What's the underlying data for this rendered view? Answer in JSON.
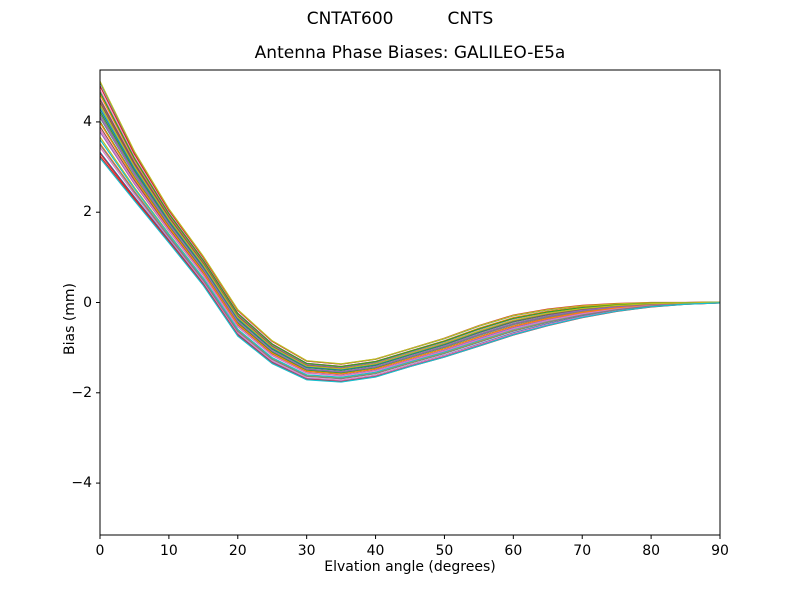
{
  "figure": {
    "suptitle": "CNTAT600          CNTS",
    "axes_title": "Antenna Phase Biases: GALILEO-E5a",
    "xlabel": "Elvation angle (degrees)",
    "ylabel": "Bias (mm)"
  },
  "chart_data": {
    "type": "line",
    "title": "Antenna Phase Biases: GALILEO-E5a",
    "suptitle": "CNTAT600          CNTS",
    "xlabel": "Elvation angle (degrees)",
    "ylabel": "Bias (mm)",
    "xlim": [
      0,
      90
    ],
    "ylim": [
      -5.15,
      5.15
    ],
    "xticks": [
      0,
      10,
      20,
      30,
      40,
      50,
      60,
      70,
      80,
      90
    ],
    "yticks": [
      -4,
      -2,
      0,
      2,
      4
    ],
    "grid": false,
    "legend": null,
    "series_note": "bundle of unlabeled per-satellite phase-bias curves (no legend shown)",
    "x": [
      0,
      5,
      10,
      15,
      20,
      25,
      30,
      35,
      40,
      45,
      50,
      55,
      60,
      65,
      70,
      75,
      80,
      85,
      90
    ],
    "mean": [
      4.05,
      2.8,
      1.7,
      0.7,
      -0.45,
      -1.1,
      -1.5,
      -1.56,
      -1.45,
      -1.22,
      -1.0,
      -0.74,
      -0.5,
      -0.33,
      -0.2,
      -0.11,
      -0.05,
      -0.02,
      0.0
    ],
    "half_spread": [
      0.85,
      0.55,
      0.38,
      0.33,
      0.3,
      0.26,
      0.22,
      0.21,
      0.21,
      0.21,
      0.22,
      0.24,
      0.23,
      0.19,
      0.14,
      0.09,
      0.05,
      0.02,
      0.01
    ],
    "n_series": 30,
    "series_fractions_start": [
      0.97,
      -0.62,
      0.21,
      -0.95,
      0.55,
      -0.18,
      0.78,
      0.05,
      -0.45,
      0.35,
      -0.85,
      0.65,
      -0.05,
      0.88,
      -0.32,
      0.45,
      -0.72,
      0.15,
      1.0,
      -0.52,
      0.28,
      -0.08,
      0.72,
      -0.88,
      0.08,
      0.52,
      -0.25,
      -0.65,
      0.38,
      -1.0
    ],
    "series_fractions_end": [
      0.85,
      -0.45,
      0.35,
      -0.8,
      0.62,
      -0.05,
      0.55,
      0.18,
      -0.6,
      0.42,
      -0.7,
      0.75,
      0.1,
      1.0,
      -0.2,
      0.3,
      -0.85,
      0.0,
      0.88,
      -0.35,
      0.45,
      -0.15,
      0.6,
      -1.0,
      0.22,
      0.38,
      -0.4,
      -0.55,
      0.5,
      -0.9
    ],
    "colors": [
      "#1f77b4",
      "#ff7f0e",
      "#2ca02c",
      "#d62728",
      "#9467bd",
      "#8c564b",
      "#e377c2",
      "#7f7f7f",
      "#bcbd22",
      "#17becf"
    ],
    "axis_color": "#000000",
    "background_color": "#ffffff"
  }
}
